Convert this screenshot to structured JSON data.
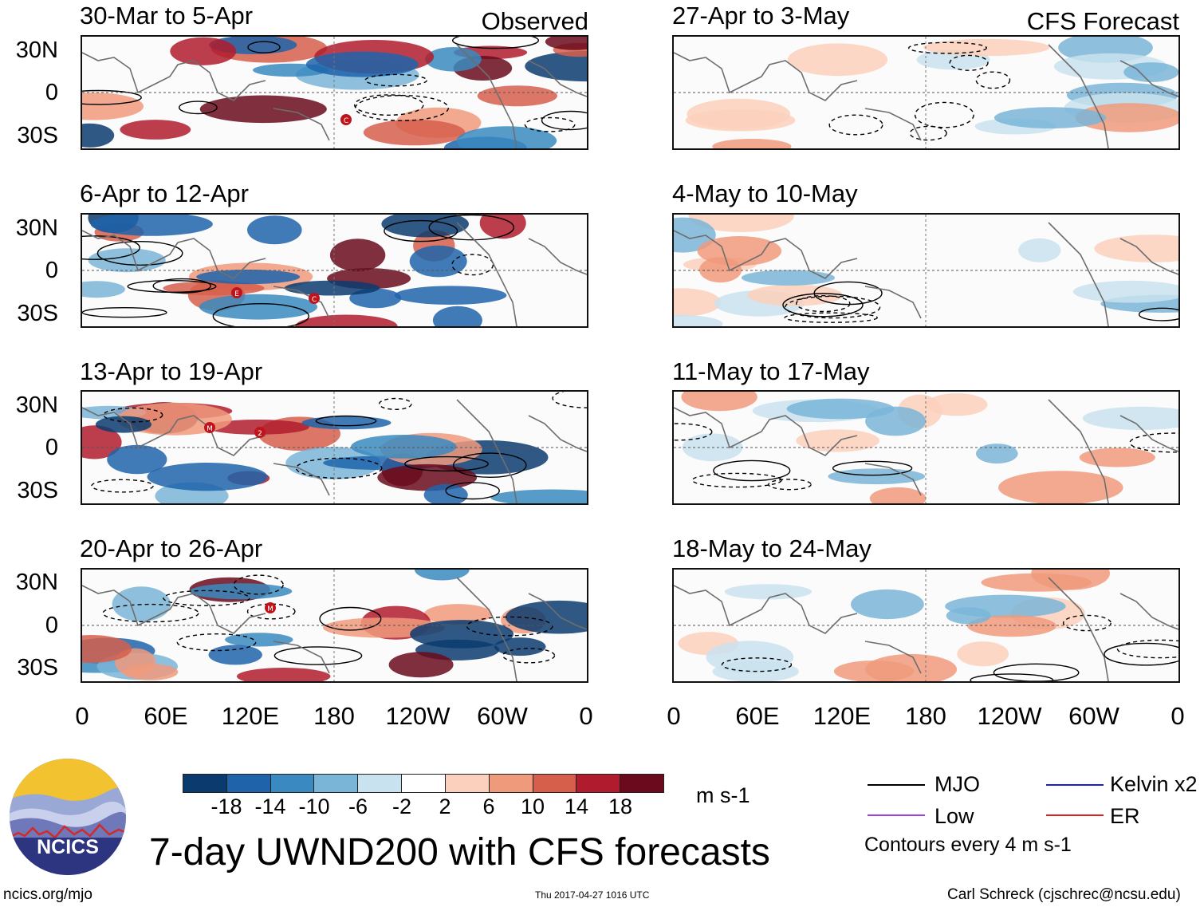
{
  "observed_label": "Observed",
  "forecast_label": "CFS Forecast",
  "panels": {
    "left": [
      {
        "title": "30-Mar to 5-Apr"
      },
      {
        "title": "6-Apr to 12-Apr"
      },
      {
        "title": "13-Apr to 19-Apr"
      },
      {
        "title": "20-Apr to 26-Apr"
      }
    ],
    "right": [
      {
        "title": "27-Apr to 3-May"
      },
      {
        "title": "4-May to 10-May"
      },
      {
        "title": "11-May to 17-May"
      },
      {
        "title": "18-May to 24-May"
      }
    ]
  },
  "lat_labels": [
    "30N",
    "0",
    "30S"
  ],
  "lon_labels": [
    "0",
    "60E",
    "120E",
    "180",
    "120W",
    "60W",
    "0"
  ],
  "markers": {
    "p1": [
      "C"
    ],
    "p2": [
      "E",
      "C"
    ],
    "p3": [
      "M",
      "2"
    ],
    "p4": [
      "M"
    ]
  },
  "colorbar": {
    "labels": [
      "-18",
      "-14",
      "-10",
      "-6",
      "-2",
      "2",
      "6",
      "10",
      "14",
      "18"
    ],
    "colors": [
      "#0b3b6e",
      "#1f64ab",
      "#3a89c0",
      "#7ab5d8",
      "#c9e2ef",
      "#ffffff",
      "#fbd0bc",
      "#f09a7c",
      "#d65f4c",
      "#b01c2d",
      "#6a0a1c"
    ],
    "units": "m s-1"
  },
  "title": "7-day UWND200 with CFS forecasts",
  "legend": {
    "mjo": "MJO",
    "kelvin": "Kelvin x2",
    "low": "Low",
    "er": "ER",
    "contours": "Contours every 4 m s-1",
    "colors": {
      "mjo": "#000000",
      "kelvin": "#1f1fcc",
      "low": "#a040e0",
      "er": "#e02020"
    }
  },
  "logo_text": "NCICS",
  "footer": {
    "url": "ncics.org/mjo",
    "timestamp": "Thu 2017-04-27 1016 UTC",
    "credit": "Carl Schreck (cjschrec@ncsu.edu)"
  }
}
